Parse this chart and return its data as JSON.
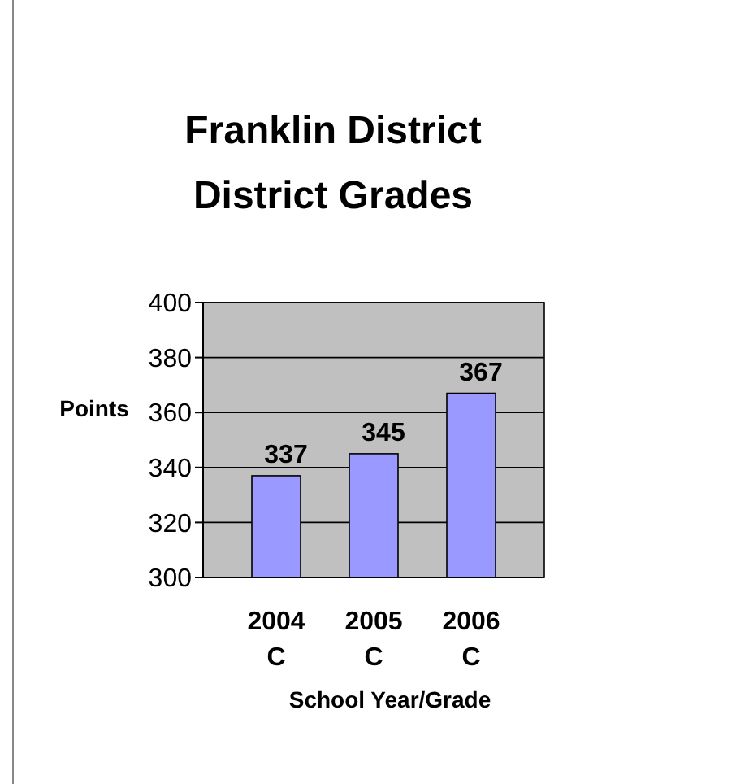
{
  "chart_data": {
    "type": "bar",
    "title": "Franklin District\nDistrict Grades",
    "xlabel": "School Year/Grade",
    "ylabel": "Points",
    "categories": [
      "2004\nC",
      "2005\nC",
      "2006\nC"
    ],
    "values": [
      337,
      345,
      367
    ],
    "color": "#9999ff",
    "ylim": [
      300,
      400
    ],
    "yticks": [
      300,
      320,
      340,
      360,
      380,
      400
    ],
    "grid": "y",
    "data_labels": true
  }
}
